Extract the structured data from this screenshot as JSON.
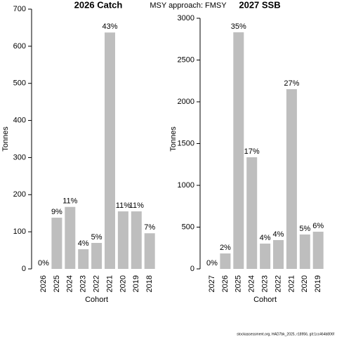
{
  "title": "MSY approach: FMSY",
  "footer": "stockassessment.org, HAD7bk_2025, r18956, git:1cc464b806f",
  "chart_data": [
    {
      "type": "bar",
      "title": "2026 Catch",
      "y_label": "Tonnes",
      "x_label": "Cohort",
      "categories": [
        "2026",
        "2025",
        "2024",
        "2023",
        "2022",
        "2021",
        "2020",
        "2019",
        "2018"
      ],
      "values": [
        0,
        138,
        167,
        53,
        70,
        637,
        155,
        155,
        96
      ],
      "bar_labels": [
        "0%",
        "9%",
        "11%",
        "4%",
        "5%",
        "43%",
        "11%",
        "11%",
        "7%"
      ],
      "color": "#bebebe",
      "ylim": [
        0,
        700
      ],
      "yticks": [
        0,
        100,
        200,
        300,
        400,
        500,
        600,
        700
      ]
    },
    {
      "type": "bar",
      "title": "2027 SSB",
      "y_label": "Tonnes",
      "x_label": "Cohort",
      "categories": [
        "2027",
        "2026",
        "2025",
        "2024",
        "2023",
        "2022",
        "2021",
        "2020",
        "2019"
      ],
      "values": [
        0,
        185,
        2832,
        1336,
        303,
        345,
        2151,
        412,
        445
      ],
      "bar_labels": [
        "0%",
        "2%",
        "35%",
        "17%",
        "4%",
        "4%",
        "27%",
        "5%",
        "6%"
      ],
      "color": "#bebebe",
      "ylim": [
        0,
        3000
      ],
      "yticks": [
        0,
        500,
        1000,
        1500,
        2000,
        2500,
        3000
      ]
    }
  ]
}
